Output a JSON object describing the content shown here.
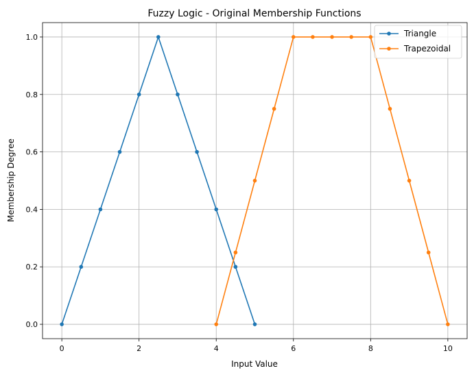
{
  "chart_data": {
    "type": "line",
    "title": "Fuzzy Logic - Original Membership Functions",
    "xlabel": "Input Value",
    "ylabel": "Membership Degree",
    "xlim": [
      -0.5,
      10.5
    ],
    "ylim": [
      -0.05,
      1.05
    ],
    "xticks": [
      "0",
      "2",
      "4",
      "6",
      "8",
      "10"
    ],
    "yticks": [
      "0.0",
      "0.2",
      "0.4",
      "0.6",
      "0.8",
      "1.0"
    ],
    "grid": true,
    "legend_position": "top-right",
    "series": [
      {
        "name": "Triangle",
        "color": "#1f77b4",
        "marker": "dot",
        "x": [
          0,
          0.5,
          1,
          1.5,
          2,
          2.5,
          3,
          3.5,
          4,
          4.5,
          5
        ],
        "y": [
          0,
          0.2,
          0.4,
          0.6,
          0.8,
          1.0,
          0.8,
          0.6,
          0.4,
          0.2,
          0
        ]
      },
      {
        "name": "Trapezoidal",
        "color": "#ff7f0e",
        "marker": "dot",
        "x": [
          4,
          4.5,
          5,
          5.5,
          6,
          6.5,
          7,
          7.5,
          8,
          8.5,
          9,
          9.5,
          10
        ],
        "y": [
          0,
          0.25,
          0.5,
          0.75,
          1.0,
          1.0,
          1.0,
          1.0,
          1.0,
          0.75,
          0.5,
          0.25,
          0
        ]
      }
    ]
  }
}
